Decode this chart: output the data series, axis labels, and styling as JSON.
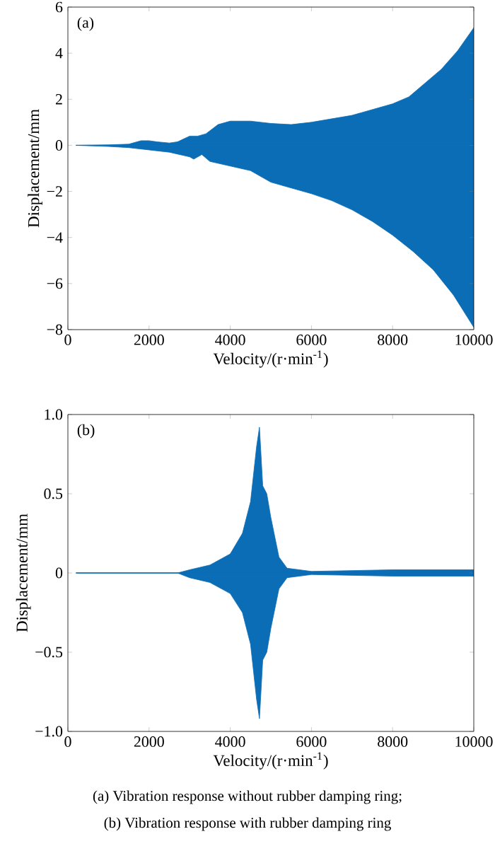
{
  "chart_data": [
    {
      "type": "area",
      "xlabel": "Velocity/(r·min$^{-1}$)",
      "ylabel": "Displacement/mm",
      "annotations": [
        "(a)"
      ],
      "xlim": [
        0,
        10000
      ],
      "xticks": [
        0,
        2000,
        4000,
        6000,
        8000,
        10000
      ],
      "ylim": [
        -8,
        6
      ],
      "yticks": [
        {
          "value": -8,
          "label": "−8"
        },
        {
          "value": -6,
          "label": "−6"
        },
        {
          "value": -4,
          "label": "−4"
        },
        {
          "value": -2,
          "label": "−2"
        },
        0,
        2,
        4,
        6
      ],
      "series": [
        {
          "color": "#0b6db5",
          "x": [
            200,
            1000,
            1500,
            1800,
            2000,
            2200,
            2500,
            2700,
            3000,
            3200,
            3400,
            3700,
            4000,
            4500,
            5000,
            5500,
            6000,
            7000,
            8000,
            8400,
            8800,
            9200,
            9600,
            10000
          ],
          "values": [
            0,
            0.02,
            0.05,
            0.2,
            0.2,
            0.15,
            0.1,
            0.15,
            0.4,
            0.4,
            0.5,
            0.9,
            1.05,
            1.05,
            0.95,
            0.9,
            1.0,
            1.3,
            1.8,
            2.1,
            2.7,
            3.3,
            4.1,
            5.1
          ]
        },
        {
          "color": "#0b6db5",
          "x": [
            200,
            1000,
            1500,
            2000,
            2500,
            3000,
            3100,
            3300,
            3500,
            4000,
            4500,
            5000,
            5500,
            6000,
            6500,
            7000,
            7500,
            8000,
            8500,
            9000,
            9500,
            10000
          ],
          "values": [
            0,
            -0.05,
            -0.1,
            -0.2,
            -0.3,
            -0.5,
            -0.6,
            -0.4,
            -0.7,
            -0.9,
            -1.1,
            -1.6,
            -1.85,
            -2.1,
            -2.4,
            -2.8,
            -3.3,
            -3.9,
            -4.6,
            -5.4,
            -6.5,
            -7.9
          ]
        }
      ]
    },
    {
      "type": "area",
      "xlabel": "Velocity/(r·min$^{-1}$)",
      "ylabel": "Displacement/mm",
      "annotations": [
        "(b)",
        "(a) Vibration response without rubber damping ring;",
        "(b) Vibration response with rubber damping ring"
      ],
      "xlim": [
        0,
        10000
      ],
      "xticks": [
        0,
        2000,
        4000,
        6000,
        8000,
        10000
      ],
      "ylim": [
        -1,
        1
      ],
      "yticks": [
        {
          "value": -1,
          "label": "−1.0"
        },
        {
          "value": -0.5,
          "label": "−0.5"
        },
        {
          "value": 0,
          "label": "0"
        },
        {
          "value": 0.5,
          "label": "0.5"
        },
        {
          "value": 1,
          "label": "1.0"
        }
      ],
      "series": [
        {
          "color": "#0b6db5",
          "x": [
            200,
            2700,
            3000,
            3500,
            4000,
            4300,
            4500,
            4650,
            4720,
            4800,
            4900,
            5000,
            5200,
            5400,
            6000,
            8000,
            10000
          ],
          "values": [
            0,
            0,
            0.02,
            0.05,
            0.12,
            0.25,
            0.45,
            0.8,
            0.92,
            0.55,
            0.5,
            0.35,
            0.1,
            0.03,
            0.01,
            0.02,
            0.02
          ]
        },
        {
          "color": "#0b6db5",
          "x": [
            200,
            2700,
            3000,
            3500,
            4000,
            4300,
            4500,
            4650,
            4720,
            4800,
            4900,
            5000,
            5200,
            5400,
            6000,
            8000,
            10000
          ],
          "values": [
            0,
            0,
            -0.03,
            -0.06,
            -0.13,
            -0.25,
            -0.45,
            -0.8,
            -0.92,
            -0.55,
            -0.5,
            -0.35,
            -0.1,
            -0.03,
            -0.01,
            -0.02,
            -0.02
          ]
        }
      ]
    }
  ]
}
